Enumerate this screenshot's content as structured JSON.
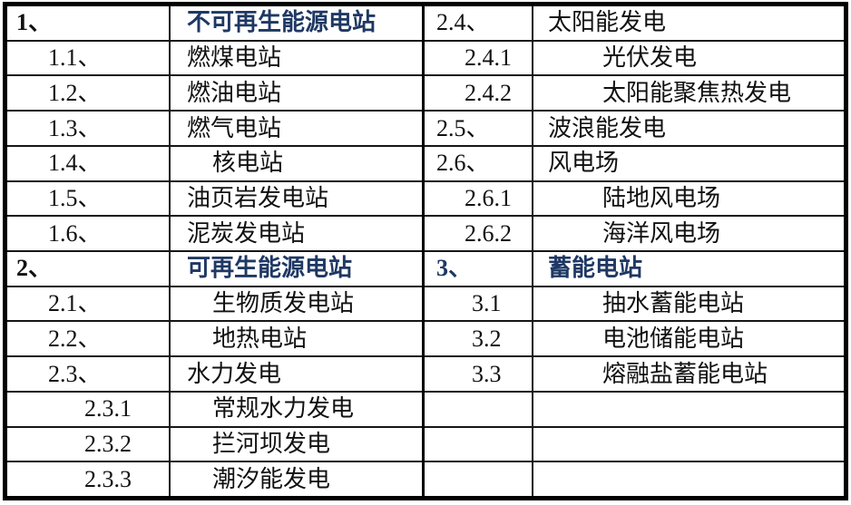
{
  "colors": {
    "header_text": "#1f3864",
    "body_text": "#111111",
    "border": "#000000",
    "background": "#ffffff"
  },
  "chart_data": {
    "type": "table",
    "title": "",
    "columns": [
      "number-left",
      "label-left",
      "number-right",
      "label-right"
    ]
  },
  "left_table": {
    "rows": [
      {
        "num": "1、",
        "label": "不可再生能源电站",
        "ni": 0,
        "li": 0,
        "hdr": "label"
      },
      {
        "num": "1.1、",
        "label": "燃煤电站",
        "ni": 1,
        "li": 0,
        "hdr": "none"
      },
      {
        "num": "1.2、",
        "label": "燃油电站",
        "ni": 1,
        "li": 0,
        "hdr": "none"
      },
      {
        "num": "1.3、",
        "label": "燃气电站",
        "ni": 1,
        "li": 0,
        "hdr": "none"
      },
      {
        "num": "1.4、",
        "label": "核电站",
        "ni": 1,
        "li": 1,
        "hdr": "none"
      },
      {
        "num": "1.5、",
        "label": "油页岩发电站",
        "ni": 1,
        "li": 0,
        "hdr": "none"
      },
      {
        "num": "1.6、",
        "label": "泥炭发电站",
        "ni": 1,
        "li": 0,
        "hdr": "none"
      },
      {
        "num": "2、",
        "label": "可再生能源电站",
        "ni": 0,
        "li": 0,
        "hdr": "label"
      },
      {
        "num": "2.1、",
        "label": "生物质发电站",
        "ni": 1,
        "li": 1,
        "hdr": "none"
      },
      {
        "num": "2.2、",
        "label": "地热电站",
        "ni": 1,
        "li": 1,
        "hdr": "none"
      },
      {
        "num": "2.3、",
        "label": "水力发电",
        "ni": 1,
        "li": 0,
        "hdr": "none"
      },
      {
        "num": "2.3.1",
        "label": "常规水力发电",
        "ni": 2,
        "li": 1,
        "hdr": "none"
      },
      {
        "num": "2.3.2",
        "label": "拦河坝发电",
        "ni": 2,
        "li": 1,
        "hdr": "none"
      },
      {
        "num": "2.3.3",
        "label": "潮汐能发电",
        "ni": 2,
        "li": 1,
        "hdr": "none"
      }
    ]
  },
  "right_table": {
    "rows": [
      {
        "num": "2.4、",
        "label": "太阳能发电",
        "ni": 0,
        "li": 0,
        "hdr": "none"
      },
      {
        "num": "2.4.1",
        "label": "光伏发电",
        "ni": 1,
        "li": 1,
        "hdr": "none"
      },
      {
        "num": "2.4.2",
        "label": "太阳能聚焦热发电",
        "ni": 1,
        "li": 1,
        "hdr": "none"
      },
      {
        "num": "2.5、",
        "label": "波浪能发电",
        "ni": 0,
        "li": 0,
        "hdr": "none"
      },
      {
        "num": "2.6、",
        "label": "风电场",
        "ni": 0,
        "li": 0,
        "hdr": "none"
      },
      {
        "num": "2.6.1",
        "label": "陆地风电场",
        "ni": 1,
        "li": 1,
        "hdr": "none"
      },
      {
        "num": "2.6.2",
        "label": "海洋风电场",
        "ni": 1,
        "li": 1,
        "hdr": "none"
      },
      {
        "num": "3、",
        "label": "蓄能电站",
        "ni": 0,
        "li": 0,
        "hdr": "both"
      },
      {
        "num": "3.1",
        "label": "抽水蓄能电站",
        "ni": 2,
        "li": 1,
        "hdr": "none"
      },
      {
        "num": "3.2",
        "label": "电池储能电站",
        "ni": 2,
        "li": 1,
        "hdr": "none"
      },
      {
        "num": "3.3",
        "label": "熔融盐蓄能电站",
        "ni": 2,
        "li": 1,
        "hdr": "none"
      },
      {
        "num": "",
        "label": "",
        "ni": 0,
        "li": 0,
        "hdr": "none"
      },
      {
        "num": "",
        "label": "",
        "ni": 0,
        "li": 0,
        "hdr": "none"
      },
      {
        "num": "",
        "label": "",
        "ni": 0,
        "li": 0,
        "hdr": "none"
      }
    ]
  }
}
